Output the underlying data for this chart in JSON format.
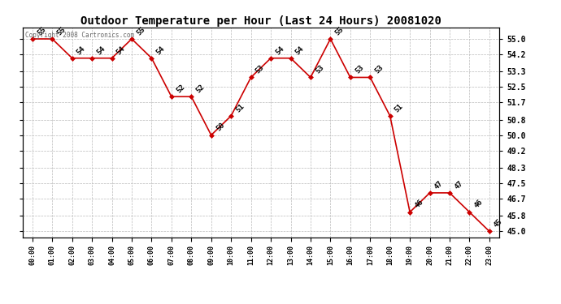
{
  "title": "Outdoor Temperature per Hour (Last 24 Hours) 20081020",
  "hours": [
    "00:00",
    "01:00",
    "02:00",
    "03:00",
    "04:00",
    "05:00",
    "06:00",
    "07:00",
    "08:00",
    "09:00",
    "10:00",
    "11:00",
    "12:00",
    "13:00",
    "14:00",
    "15:00",
    "16:00",
    "17:00",
    "18:00",
    "19:00",
    "20:00",
    "21:00",
    "22:00",
    "23:00"
  ],
  "values": [
    55,
    55,
    54,
    54,
    54,
    55,
    54,
    52,
    52,
    50,
    51,
    53,
    54,
    54,
    53,
    55,
    53,
    53,
    51,
    46,
    47,
    47,
    46,
    45
  ],
  "line_color": "#cc0000",
  "marker_color": "#cc0000",
  "bg_color": "#ffffff",
  "grid_color": "#bbbbbb",
  "title_color": "#000000",
  "yticks": [
    45.0,
    45.8,
    46.7,
    47.5,
    48.3,
    49.2,
    50.0,
    50.8,
    51.7,
    52.5,
    53.3,
    54.2,
    55.0
  ],
  "ylim": [
    44.7,
    55.6
  ],
  "copyright_text": "Copyright 2008 Cartronics.com",
  "label_color": "#000000",
  "figwidth": 6.9,
  "figheight": 3.75,
  "dpi": 100
}
